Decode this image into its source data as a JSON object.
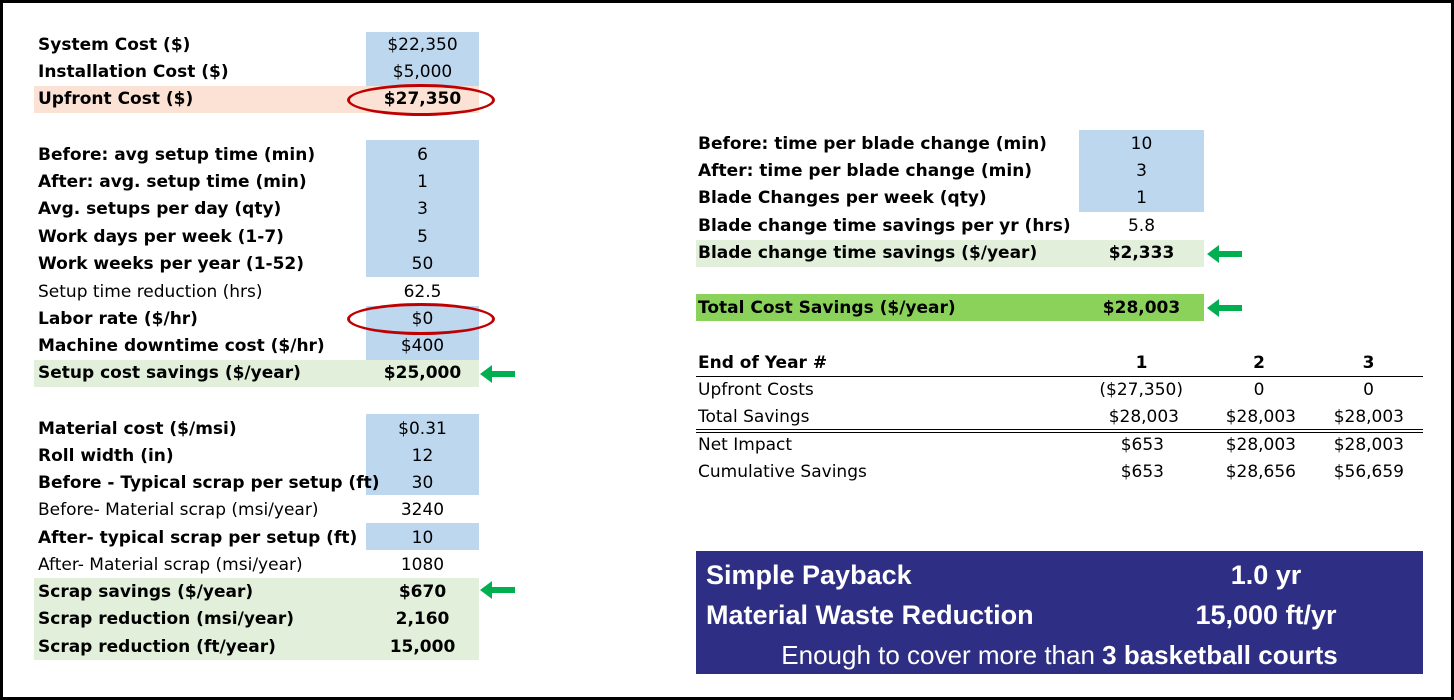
{
  "costs": {
    "system_label": "System Cost ($)",
    "system_value": "$22,350",
    "install_label": "Installation Cost ($)",
    "install_value": "$5,000",
    "upfront_label": "Upfront Cost ($)",
    "upfront_value": "$27,350"
  },
  "setup": {
    "before_label": "Before: avg setup time (min)",
    "before_value": "6",
    "after_label": "After: avg. setup time (min)",
    "after_value": "1",
    "setups_label": "Avg. setups per day (qty)",
    "setups_value": "3",
    "days_label": "Work days per week (1-7)",
    "days_value": "5",
    "weeks_label": "Work weeks per year (1-52)",
    "weeks_value": "50",
    "reduction_label": "Setup time reduction (hrs)",
    "reduction_value": "62.5",
    "labor_label": "Labor rate ($/hr)",
    "labor_value": "$0",
    "downtime_label": "Machine downtime cost ($/hr)",
    "downtime_value": "$400",
    "savings_label": "Setup cost savings ($/year)",
    "savings_value": "$25,000"
  },
  "material": {
    "cost_label": "Material cost ($/msi)",
    "cost_value": "$0.31",
    "width_label": "Roll width (in)",
    "width_value": "12",
    "before_scrap_label": "Before - Typical scrap per setup (ft)",
    "before_scrap_value": "30",
    "before_msi_label": "Before- Material scrap (msi/year)",
    "before_msi_value": "3240",
    "after_scrap_label": "After- typical scrap per setup (ft)",
    "after_scrap_value": "10",
    "after_msi_label": "After- Material scrap (msi/year)",
    "after_msi_value": "1080",
    "savings_label": "Scrap savings ($/year)",
    "savings_value": "$670",
    "red_msi_label": "Scrap reduction (msi/year)",
    "red_msi_value": "2,160",
    "red_ft_label": "Scrap reduction (ft/year)",
    "red_ft_value": "15,000"
  },
  "blade": {
    "before_label": "Before: time per blade change (min)",
    "before_value": "10",
    "after_label": "After: time per blade change (min)",
    "after_value": "3",
    "changes_label": "Blade Changes per week (qty)",
    "changes_value": "1",
    "hrs_label": "Blade change time savings per yr (hrs)",
    "hrs_value": "5.8",
    "savings_label": "Blade change time savings ($/year)",
    "savings_value": "$2,333"
  },
  "total": {
    "label": "Total Cost Savings ($/year)",
    "value": "$28,003"
  },
  "table": {
    "header": [
      "End of Year #",
      "1",
      "2",
      "3"
    ],
    "rows": [
      [
        "Upfront Costs",
        "($27,350)",
        "0",
        "0"
      ],
      [
        "Total Savings",
        "$28,003",
        "$28,003",
        "$28,003"
      ],
      [
        "Net Impact",
        "$653",
        "$28,003",
        "$28,003"
      ],
      [
        "Cumulative Savings",
        "$653",
        "$28,656",
        "$56,659"
      ]
    ]
  },
  "payback": {
    "simple_label": "Simple Payback",
    "simple_value": "1.0 yr",
    "waste_label": "Material Waste Reduction",
    "waste_value": "15,000 ft/yr",
    "enough_prefix": "Enough to cover more than ",
    "enough_bold": "3 basketball courts"
  },
  "colors": {
    "input_blue": "#bdd7ee",
    "upfront_peach": "#fbe2d5",
    "savings_green": "#e2efda",
    "total_green": "#8bd25a",
    "highlight_red": "#c00000",
    "arrow_green": "#00b050",
    "payback_navy": "#2e2e84"
  },
  "icons": {
    "arrow": "green-left-arrow-icon",
    "circle": "red-ellipse-highlight"
  }
}
